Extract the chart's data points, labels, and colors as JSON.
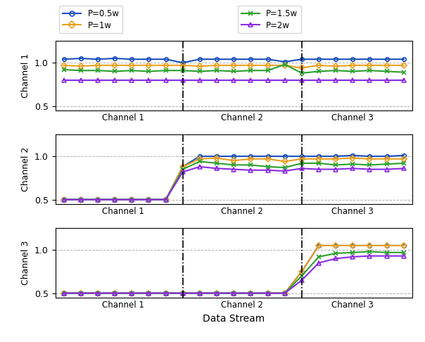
{
  "title": "",
  "xlabel": "Data Stream",
  "ylabel1": "Channel 1",
  "ylabel2": "Channel 2",
  "ylabel3": "Channel 3",
  "ylim": [
    0.45,
    1.25
  ],
  "yticks": [
    0.5,
    1.0
  ],
  "n_points": 21,
  "vline1": 7,
  "vline2": 14,
  "colors": {
    "P05": "#1a4fba",
    "P1": "#e8a020",
    "P15": "#2ca02c",
    "P2": "#8b2be2"
  },
  "legend_labels": [
    "P=0.5w",
    "P=1w",
    "P=1.5w",
    "P=2w"
  ],
  "markers": [
    "o",
    "D",
    "x",
    "^"
  ],
  "segment_labels": [
    "Channel 1",
    "Channel 2",
    "Channel 3"
  ],
  "ch1": {
    "P05": [
      1.04,
      1.05,
      1.04,
      1.05,
      1.04,
      1.04,
      1.04,
      1.0,
      1.04,
      1.04,
      1.04,
      1.04,
      1.04,
      1.01,
      1.04,
      1.04,
      1.04,
      1.04,
      1.04,
      1.04,
      1.04
    ],
    "P1": [
      0.97,
      0.96,
      0.97,
      0.97,
      0.97,
      0.97,
      0.97,
      0.97,
      0.96,
      0.97,
      0.97,
      0.97,
      0.97,
      0.97,
      0.94,
      0.97,
      0.96,
      0.97,
      0.97,
      0.97,
      0.97
    ],
    "P15": [
      0.92,
      0.91,
      0.91,
      0.9,
      0.91,
      0.9,
      0.91,
      0.91,
      0.9,
      0.91,
      0.9,
      0.91,
      0.91,
      0.98,
      0.88,
      0.9,
      0.91,
      0.9,
      0.91,
      0.9,
      0.89
    ],
    "P2": [
      0.8,
      0.8,
      0.8,
      0.8,
      0.8,
      0.8,
      0.8,
      0.8,
      0.8,
      0.8,
      0.8,
      0.8,
      0.8,
      0.8,
      0.8,
      0.8,
      0.8,
      0.8,
      0.8,
      0.8,
      0.8
    ]
  },
  "ch2": {
    "P05": [
      0.5,
      0.5,
      0.5,
      0.5,
      0.5,
      0.5,
      0.5,
      0.88,
      1.0,
      1.0,
      1.0,
      1.0,
      1.0,
      1.0,
      1.0,
      1.0,
      1.0,
      1.01,
      1.0,
      1.0,
      1.01
    ],
    "P1": [
      0.5,
      0.5,
      0.5,
      0.5,
      0.5,
      0.5,
      0.5,
      0.88,
      0.97,
      0.98,
      0.95,
      0.97,
      0.97,
      0.94,
      0.97,
      0.97,
      0.97,
      0.98,
      0.97,
      0.97,
      0.97
    ],
    "P15": [
      0.5,
      0.5,
      0.5,
      0.5,
      0.5,
      0.5,
      0.5,
      0.85,
      0.94,
      0.92,
      0.9,
      0.9,
      0.88,
      0.87,
      0.92,
      0.92,
      0.9,
      0.91,
      0.9,
      0.91,
      0.92
    ],
    "P2": [
      0.5,
      0.5,
      0.5,
      0.5,
      0.5,
      0.5,
      0.5,
      0.82,
      0.88,
      0.86,
      0.85,
      0.84,
      0.84,
      0.83,
      0.86,
      0.85,
      0.85,
      0.86,
      0.85,
      0.85,
      0.86
    ]
  },
  "ch3": {
    "P05": [
      0.5,
      0.5,
      0.5,
      0.5,
      0.5,
      0.5,
      0.5,
      0.5,
      0.5,
      0.5,
      0.5,
      0.5,
      0.5,
      0.5,
      0.75,
      1.05,
      1.05,
      1.05,
      1.05,
      1.05,
      1.05
    ],
    "P1": [
      0.5,
      0.5,
      0.5,
      0.5,
      0.5,
      0.5,
      0.5,
      0.5,
      0.5,
      0.5,
      0.5,
      0.5,
      0.5,
      0.5,
      0.75,
      1.05,
      1.05,
      1.05,
      1.05,
      1.05,
      1.05
    ],
    "P15": [
      0.5,
      0.5,
      0.5,
      0.5,
      0.5,
      0.5,
      0.5,
      0.5,
      0.5,
      0.5,
      0.5,
      0.5,
      0.5,
      0.5,
      0.7,
      0.92,
      0.96,
      0.97,
      0.98,
      0.97,
      0.97
    ],
    "P2": [
      0.5,
      0.5,
      0.5,
      0.5,
      0.5,
      0.5,
      0.5,
      0.5,
      0.5,
      0.5,
      0.5,
      0.5,
      0.5,
      0.5,
      0.65,
      0.85,
      0.9,
      0.92,
      0.93,
      0.93,
      0.93
    ]
  }
}
